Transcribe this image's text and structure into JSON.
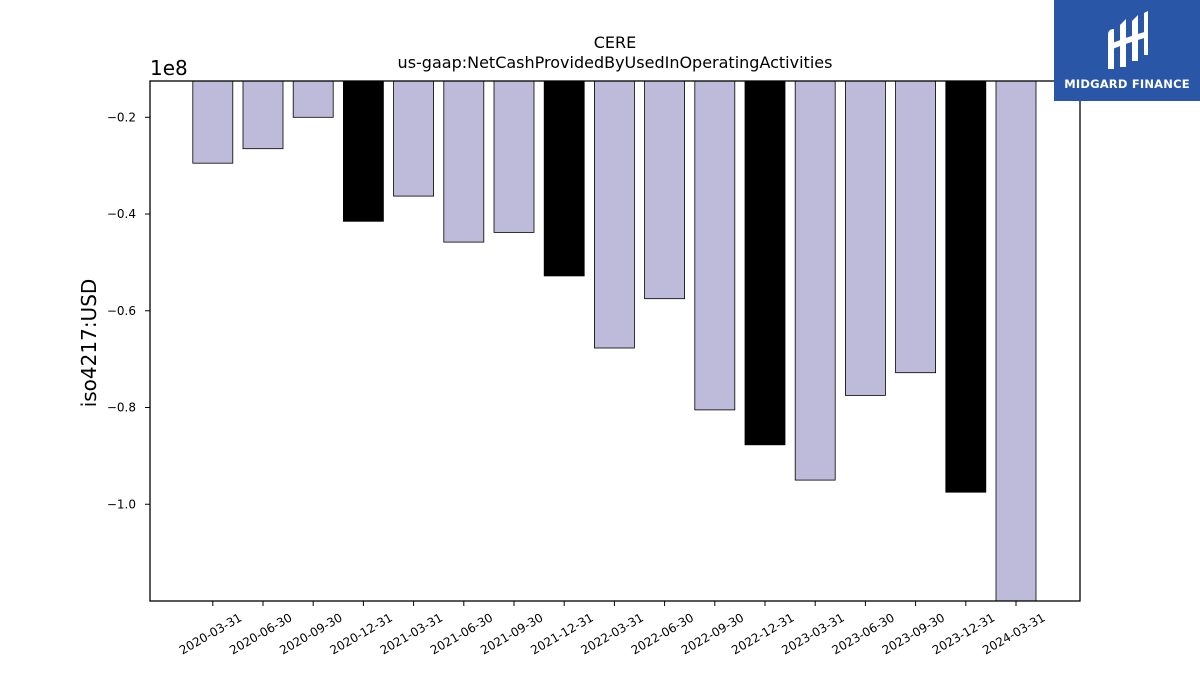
{
  "brand": {
    "name": "MIDGARD FINANCE",
    "logo_icon": "midgard-logo-icon",
    "background": "#2a56a8"
  },
  "chart_data": {
    "type": "bar",
    "title": "CERE",
    "subtitle": "us-gaap:NetCashProvidedByUsedInOperatingActivities",
    "xlabel": "",
    "ylabel": "iso4217:USD",
    "y_scale_label": "1e8",
    "ylim": [
      -1.2,
      -0.125
    ],
    "yticks": [
      -0.2,
      -0.4,
      -0.6,
      -0.8,
      -1.0
    ],
    "ytick_labels": [
      "−0.2",
      "−0.4",
      "−0.6",
      "−0.8",
      "−1.0"
    ],
    "grid": false,
    "categories": [
      "2020-03-31",
      "2020-06-30",
      "2020-09-30",
      "2020-12-31",
      "2021-03-31",
      "2021-06-30",
      "2021-09-30",
      "2021-12-31",
      "2022-03-31",
      "2022-06-30",
      "2022-09-30",
      "2022-12-31",
      "2023-03-31",
      "2023-06-30",
      "2023-09-30",
      "2023-12-31",
      "2024-03-31"
    ],
    "values": [
      -0.295,
      -0.265,
      -0.2,
      -0.415,
      -0.363,
      -0.458,
      -0.438,
      -0.528,
      -0.677,
      -0.575,
      -0.805,
      -0.877,
      -0.95,
      -0.775,
      -0.728,
      -0.975,
      -1.2
    ],
    "colors": {
      "quarter": "#bebada",
      "year_end": "#000000",
      "edge": "#000000"
    },
    "highlighted_categories": [
      "2020-12-31",
      "2021-12-31",
      "2022-12-31",
      "2023-12-31"
    ]
  }
}
